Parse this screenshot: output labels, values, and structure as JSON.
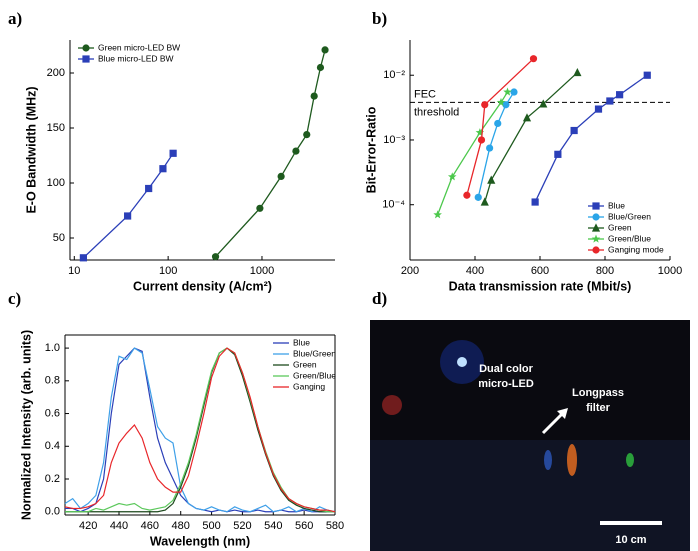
{
  "chart_data": [
    {
      "type": "line",
      "panel_label": "a)",
      "xlog": true,
      "xlabel": "Current density (A/cm²)",
      "ylabel": "E-O Bandwidth (MHz)",
      "xlim": [
        9,
        6000
      ],
      "xticks": [
        10,
        100,
        1000
      ],
      "ylim": [
        30,
        230
      ],
      "yticks": [
        50,
        100,
        150,
        200
      ],
      "legend": "top-left",
      "series": [
        {
          "name": "Green micro-LED BW",
          "color": "#1e5a1e",
          "marker": "circle",
          "x": [
            320,
            950,
            1600,
            2300,
            3000,
            3600,
            4200,
            4700
          ],
          "values": [
            33,
            77,
            106,
            129,
            144,
            179,
            205,
            221
          ]
        },
        {
          "name": "Blue micro-LED BW",
          "color": "#2b3fb8",
          "marker": "square",
          "x": [
            12.5,
            37,
            62,
            88,
            113
          ],
          "values": [
            32,
            70,
            95,
            113,
            127
          ]
        }
      ]
    },
    {
      "type": "line",
      "panel_label": "b)",
      "ylog": true,
      "xlabel": "Data transmission rate (Mbit/s)",
      "ylabel": "Bit-Error-Ratio",
      "xlim": [
        200,
        1000
      ],
      "xticks": [
        200,
        400,
        600,
        800,
        1000
      ],
      "ylim": [
        1.4e-05,
        0.035
      ],
      "yticks": [
        {
          "value": 0.0001,
          "label": "10⁻⁴"
        },
        {
          "value": 0.001,
          "label": "10⁻³"
        },
        {
          "value": 0.01,
          "label": "10⁻²"
        }
      ],
      "hline": {
        "value": 0.0038,
        "label": [
          "FEC",
          "threshold"
        ]
      },
      "legend": "bottom-right",
      "series": [
        {
          "name": "Blue",
          "color": "#2b3fb8",
          "marker": "square",
          "x": [
            585,
            655,
            705,
            780,
            815,
            845,
            930
          ],
          "values": [
            0.00011,
            0.0006,
            0.0014,
            0.003,
            0.004,
            0.005,
            0.01
          ]
        },
        {
          "name": "Blue/Green",
          "color": "#2aa5e8",
          "marker": "circle",
          "x": [
            410,
            445,
            470,
            495,
            520
          ],
          "values": [
            0.00013,
            0.00075,
            0.0018,
            0.0035,
            0.0055
          ]
        },
        {
          "name": "Green",
          "color": "#1e5a1e",
          "marker": "triangle",
          "x": [
            430,
            450,
            560,
            610,
            715
          ],
          "values": [
            0.00011,
            0.00024,
            0.0022,
            0.0036,
            0.011
          ]
        },
        {
          "name": "Green/Blue",
          "color": "#4cc84c",
          "marker": "star",
          "x": [
            285,
            330,
            415,
            480,
            500
          ],
          "values": [
            7e-05,
            0.00027,
            0.0013,
            0.0038,
            0.0055
          ]
        },
        {
          "name": "Ganging mode",
          "color": "#e8262a",
          "marker": "circle",
          "x": [
            375,
            420,
            430,
            580
          ],
          "values": [
            0.00014,
            0.001,
            0.0035,
            0.018
          ]
        }
      ]
    },
    {
      "type": "line",
      "panel_label": "c)",
      "frame": true,
      "xlabel": "Wavelength (nm)",
      "ylabel": "Normalized Intensity (arb. units)",
      "xlim": [
        405,
        580
      ],
      "xticks": [
        420,
        440,
        460,
        480,
        500,
        520,
        540,
        560,
        580
      ],
      "ylim": [
        -0.02,
        1.08
      ],
      "yticks": [
        {
          "value": 0,
          "label": "0.0"
        },
        {
          "value": 0.2,
          "label": "0.2"
        },
        {
          "value": 0.4,
          "label": "0.4"
        },
        {
          "value": 0.6,
          "label": "0.6"
        },
        {
          "value": 0.8,
          "label": "0.8"
        },
        {
          "value": 1,
          "label": "1.0"
        }
      ],
      "legend": "top-right",
      "x": [
        405,
        410,
        415,
        420,
        425,
        430,
        435,
        440,
        445,
        450,
        455,
        460,
        465,
        470,
        475,
        480,
        485,
        490,
        495,
        500,
        505,
        510,
        515,
        520,
        525,
        530,
        535,
        540,
        545,
        550,
        555,
        560,
        565,
        570,
        575,
        580
      ],
      "series": [
        {
          "name": "Blue",
          "color": "#2b3fb8",
          "values": [
            0.02,
            0.02,
            0,
            0.02,
            0.05,
            0.2,
            0.6,
            0.9,
            0.95,
            1,
            0.98,
            0.7,
            0.45,
            0.3,
            0.2,
            0.1,
            0.05,
            0.02,
            0.01,
            0,
            0.01,
            0,
            0.01,
            0,
            0,
            0.01,
            0,
            0,
            0.01,
            0,
            0,
            0.01,
            0,
            0,
            0,
            0
          ]
        },
        {
          "name": "Blue/Green",
          "color": "#3fa0e8",
          "values": [
            0.05,
            0.08,
            0.02,
            0.05,
            0.1,
            0.3,
            0.7,
            0.95,
            0.93,
            1,
            0.97,
            0.75,
            0.52,
            0.45,
            0.42,
            0.15,
            0.05,
            0.02,
            0.01,
            0.03,
            0.01,
            0,
            0.03,
            0.01,
            0,
            0.02,
            0.04,
            0,
            0.01,
            0.03,
            0,
            0.02,
            0,
            0.03,
            0.01,
            0
          ]
        },
        {
          "name": "Green",
          "color": "#1e4a1e",
          "values": [
            0,
            0,
            0,
            0,
            0,
            0,
            0,
            0,
            0,
            0,
            0,
            0,
            0,
            0.01,
            0.05,
            0.15,
            0.28,
            0.45,
            0.65,
            0.85,
            0.97,
            1,
            0.96,
            0.83,
            0.67,
            0.5,
            0.35,
            0.22,
            0.13,
            0.07,
            0.04,
            0.02,
            0.01,
            0,
            0,
            0
          ]
        },
        {
          "name": "Green/Blue",
          "color": "#5cc85c",
          "values": [
            0,
            0,
            0,
            0,
            0.02,
            0.01,
            0.03,
            0.05,
            0.04,
            0.05,
            0.02,
            0.01,
            0.02,
            0.03,
            0.07,
            0.17,
            0.3,
            0.47,
            0.67,
            0.86,
            0.97,
            1,
            0.97,
            0.85,
            0.69,
            0.52,
            0.37,
            0.24,
            0.15,
            0.08,
            0.05,
            0.03,
            0.02,
            0.01,
            0,
            0
          ]
        },
        {
          "name": "Ganging",
          "color": "#e8262a",
          "values": [
            0.03,
            0.02,
            0.02,
            0.03,
            0.05,
            0.1,
            0.3,
            0.42,
            0.48,
            0.53,
            0.45,
            0.3,
            0.2,
            0.15,
            0.12,
            0.12,
            0.22,
            0.4,
            0.6,
            0.82,
            0.95,
            1,
            0.97,
            0.85,
            0.7,
            0.52,
            0.36,
            0.23,
            0.14,
            0.08,
            0.05,
            0.03,
            0.02,
            0.01,
            0.01,
            0
          ]
        }
      ]
    }
  ],
  "photo": {
    "panel_label": "d)",
    "labels": [
      "Dual color",
      "micro-LED",
      "Longpass",
      "filter",
      "10 cm"
    ]
  }
}
